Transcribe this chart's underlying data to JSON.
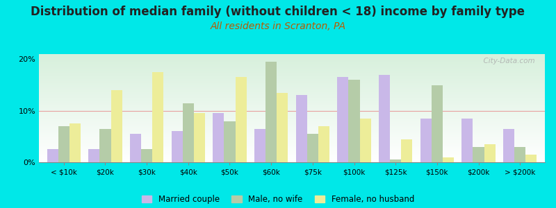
{
  "title": "Distribution of median family (without children < 18) income by family type",
  "subtitle": "All residents in Scranton, PA",
  "categories": [
    "< $10k",
    "$20k",
    "$30k",
    "$40k",
    "$50k",
    "$60k",
    "$75k",
    "$100k",
    "$125k",
    "$150k",
    "$200k",
    "> $200k"
  ],
  "married_couple": [
    2.5,
    2.5,
    5.5,
    6.0,
    9.5,
    6.5,
    13.0,
    16.5,
    17.0,
    8.5,
    8.5,
    6.5
  ],
  "male_no_wife": [
    7.0,
    6.5,
    2.5,
    11.5,
    8.0,
    19.5,
    5.5,
    16.0,
    0.5,
    15.0,
    3.0,
    3.0
  ],
  "female_no_husband": [
    7.5,
    14.0,
    17.5,
    9.5,
    16.5,
    13.5,
    7.0,
    8.5,
    4.5,
    1.0,
    3.5,
    1.5
  ],
  "married_color": "#c9b8e8",
  "male_color": "#b5cca8",
  "female_color": "#eded99",
  "bg_color": "#00e8e8",
  "ylim": [
    0,
    21
  ],
  "yticks": [
    0,
    10,
    20
  ],
  "watermark": "  City-Data.com",
  "title_fontsize": 12,
  "subtitle_fontsize": 10,
  "title_color": "#222222",
  "subtitle_color": "#b85c00"
}
